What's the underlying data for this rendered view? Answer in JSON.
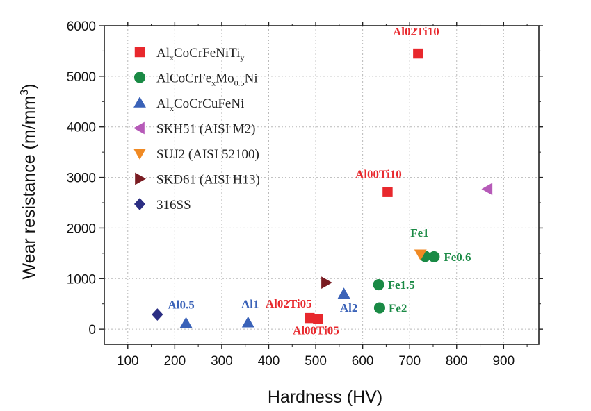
{
  "chart_data": {
    "type": "scatter",
    "xlabel": "Hardness (HV)",
    "ylabel": "Wear resistance (m/mm3)",
    "xlim": [
      50,
      975
    ],
    "ylim": [
      -300,
      6000
    ],
    "xticks": [
      "100",
      "200",
      "300",
      "400",
      "500",
      "600",
      "700",
      "800",
      "900"
    ],
    "yticks": [
      "0",
      "1000",
      "2000",
      "3000",
      "4000",
      "5000",
      "6000"
    ],
    "grid": true,
    "legend_position": "top-left",
    "series": [
      {
        "key": "al-ti",
        "name": "AlxCoCrFeNiTiy",
        "legend_parts": [
          [
            "Al",
            ""
          ],
          [
            "x",
            "sub"
          ],
          [
            "CoCrFeNiTi",
            ""
          ],
          [
            "y",
            "sub"
          ]
        ],
        "marker": "square",
        "color": "#e8282d",
        "points": [
          {
            "x": 718,
            "y": 5450,
            "label": "Al02Ti10"
          },
          {
            "x": 653,
            "y": 2710,
            "label": "Al00Ti10"
          },
          {
            "x": 487,
            "y": 220,
            "label": "Al02Ti05"
          },
          {
            "x": 505,
            "y": 200,
            "label": "Al00Ti05"
          }
        ]
      },
      {
        "key": "fe-mo",
        "name": "AlCoCrFexMo0.5Ni",
        "legend_parts": [
          [
            "AlCoCrFe",
            ""
          ],
          [
            "x",
            "sub"
          ],
          [
            "Mo",
            ""
          ],
          [
            "0.5",
            "sub"
          ],
          [
            "Ni",
            ""
          ]
        ],
        "marker": "circle",
        "color": "#1a8a45",
        "points": [
          {
            "x": 733,
            "y": 1440,
            "label": "Fe1"
          },
          {
            "x": 752,
            "y": 1430,
            "label": "Fe0.6"
          },
          {
            "x": 634,
            "y": 880,
            "label": "Fe1.5"
          },
          {
            "x": 636,
            "y": 420,
            "label": "Fe2"
          }
        ]
      },
      {
        "key": "al-cu",
        "name": "AlxCoCrCuFeNi",
        "legend_parts": [
          [
            "Al",
            ""
          ],
          [
            "x",
            "sub"
          ],
          [
            "CoCrCuFeNi",
            ""
          ]
        ],
        "marker": "triangle-up",
        "color": "#3a62b8",
        "points": [
          {
            "x": 224,
            "y": 120,
            "label": "Al0.5"
          },
          {
            "x": 356,
            "y": 130,
            "label": "Al1"
          },
          {
            "x": 560,
            "y": 700,
            "label": "Al2"
          }
        ]
      },
      {
        "key": "skh51",
        "name": "SKH51 (AISI M2)",
        "legend_parts": [
          [
            "SKH51 (AISI M2)",
            ""
          ]
        ],
        "marker": "triangle-left",
        "color": "#b65ab8",
        "points": [
          {
            "x": 866,
            "y": 2770
          }
        ]
      },
      {
        "key": "suj2",
        "name": "SUJ2 (AISI 52100)",
        "legend_parts": [
          [
            "SUJ2 (AISI 52100)",
            ""
          ]
        ],
        "marker": "triangle-down",
        "color": "#f08a24",
        "points": [
          {
            "x": 723,
            "y": 1480
          }
        ]
      },
      {
        "key": "skd61",
        "name": "SKD61 (AISI H13)",
        "legend_parts": [
          [
            "SKD61 (AISI H13)",
            ""
          ]
        ],
        "marker": "triangle-right",
        "color": "#7a1c22",
        "points": [
          {
            "x": 522,
            "y": 920
          }
        ]
      },
      {
        "key": "ss316",
        "name": "316SS",
        "legend_parts": [
          [
            "316SS",
            ""
          ]
        ],
        "marker": "diamond",
        "color": "#2b2e83",
        "points": [
          {
            "x": 163,
            "y": 290
          }
        ]
      }
    ]
  }
}
